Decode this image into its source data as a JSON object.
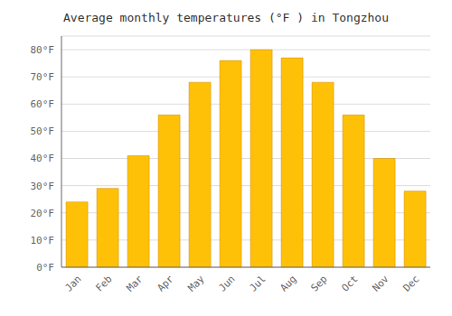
{
  "chart_data": {
    "type": "bar",
    "title": "Average monthly temperatures (°F ) in Tongzhou",
    "categories": [
      "Jan",
      "Feb",
      "Mar",
      "Apr",
      "May",
      "Jun",
      "Jul",
      "Aug",
      "Sep",
      "Oct",
      "Nov",
      "Dec"
    ],
    "values": [
      24,
      29,
      41,
      56,
      68,
      76,
      80,
      77,
      68,
      56,
      40,
      28
    ],
    "color": "#FFC107",
    "ylim": [
      0,
      85
    ],
    "yticks": [
      {
        "value": 0,
        "label": "0°F"
      },
      {
        "value": 10,
        "label": "10°F"
      },
      {
        "value": 20,
        "label": "20°F"
      },
      {
        "value": 30,
        "label": "30°F"
      },
      {
        "value": 40,
        "label": "40°F"
      },
      {
        "value": 50,
        "label": "50°F"
      },
      {
        "value": 60,
        "label": "60°F"
      },
      {
        "value": 70,
        "label": "70°F"
      },
      {
        "value": 80,
        "label": "80°F"
      }
    ],
    "grid": true
  }
}
